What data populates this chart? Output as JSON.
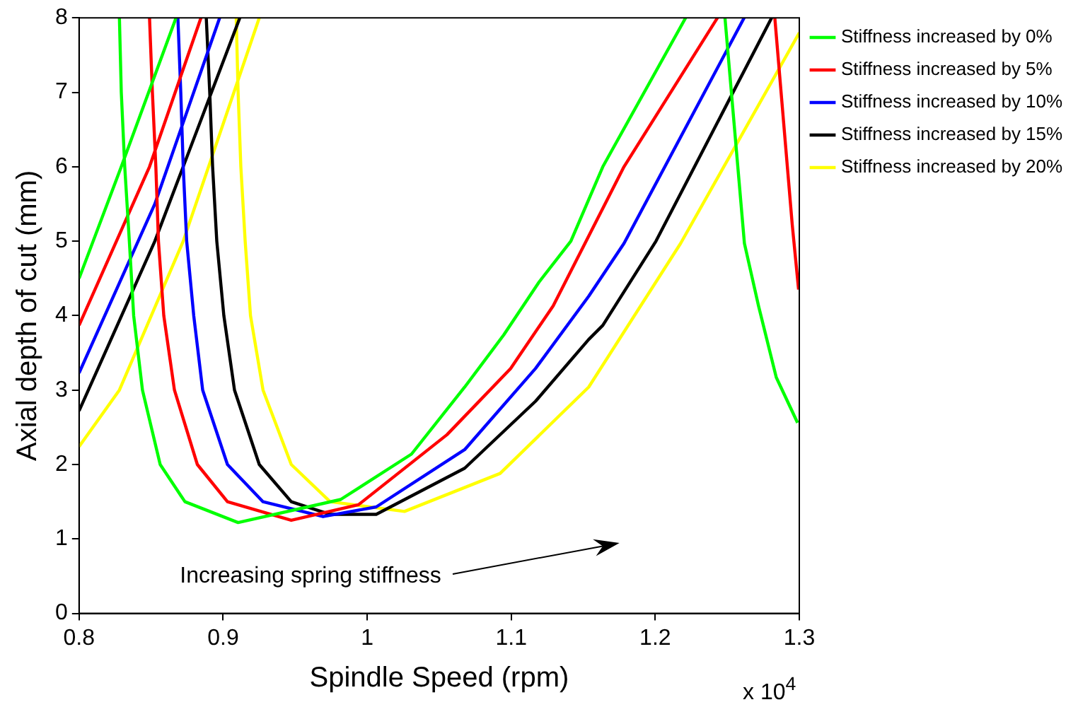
{
  "chart_data": {
    "type": "line",
    "xlabel": "Spindle Speed (rpm)",
    "ylabel": "Axial depth of cut (mm)",
    "annotations": [
      "Increasing spring stiffness",
      "x 10$^{4}$"
    ],
    "xlim": [
      0.8,
      1.3
    ],
    "xticks": [
      0.8,
      0.9,
      1,
      1.1,
      1.2,
      1.3
    ],
    "ylim": [
      0,
      8
    ],
    "yticks": [
      0,
      1,
      2,
      3,
      4,
      5,
      6,
      7,
      8
    ],
    "grid": false,
    "legend": "right",
    "marker": "none",
    "line_style": "solid",
    "series": [
      {
        "name": "Stiffness increased by 0%",
        "color": "#00ff00",
        "x": [
          0.8,
          0.8293,
          0.8673,
          null,
          0.828,
          0.8293,
          0.8317,
          0.8349,
          0.8379,
          0.844,
          0.8563,
          0.8735,
          0.9104,
          0.9816,
          1.0308,
          1.0677,
          1.0948,
          1.1193,
          1.1414,
          1.1636,
          1.2211,
          null,
          1.2484,
          1.2619,
          1.2717,
          1.284,
          1.2988
        ],
        "values": [
          4.5,
          6.0,
          8,
          null,
          8,
          7,
          6,
          5,
          4,
          3,
          2,
          1.5,
          1.22,
          1.53,
          2.14,
          3.04,
          3.74,
          4.45,
          5.0,
          6.0,
          8,
          null,
          8,
          4.97,
          4.13,
          3.17,
          2.56
        ]
      },
      {
        "name": "Stiffness increased by 5%",
        "color": "#ff0000",
        "x": [
          0.8,
          0.8489,
          0.8846,
          null,
          0.8489,
          0.8509,
          0.8533,
          0.8551,
          0.8588,
          0.8662,
          0.8821,
          0.903,
          0.9473,
          0.994,
          1.0554,
          1.0996,
          1.1291,
          1.1783,
          1.2432,
          null,
          1.283,
          1.2951,
          1.2995
        ],
        "values": [
          3.87,
          6.0,
          8,
          null,
          8,
          7,
          6,
          5,
          4,
          3,
          2,
          1.5,
          1.25,
          1.46,
          2.4,
          3.29,
          4.13,
          6.0,
          8,
          null,
          8,
          5.22,
          4.35
        ]
      },
      {
        "name": "Stiffness increased by 10%",
        "color": "#0000ff",
        "x": [
          0.8,
          0.8526,
          0.8976,
          null,
          0.8686,
          0.8706,
          0.8723,
          0.8747,
          0.8796,
          0.8858,
          0.903,
          0.9277,
          0.9694,
          1.0063,
          1.0677,
          1.1169,
          1.1538,
          1.1783,
          1.2617
        ],
        "values": [
          3.23,
          5.5,
          8,
          null,
          8,
          7,
          6,
          5,
          4,
          3,
          2,
          1.5,
          1.3,
          1.43,
          2.2,
          3.29,
          4.26,
          4.97,
          8
        ]
      },
      {
        "name": "Stiffness increased by 15%",
        "color": "#000000",
        "x": [
          0.8,
          0.8526,
          0.9116,
          null,
          0.8883,
          0.8907,
          0.8927,
          0.8956,
          0.9005,
          0.9079,
          0.9251,
          0.9473,
          0.9743,
          1.0063,
          1.0677,
          1.1169,
          1.1538,
          1.1636,
          1.2005,
          1.2808
        ],
        "values": [
          2.72,
          5.0,
          8,
          null,
          8,
          7,
          6,
          5,
          4,
          3,
          2,
          1.5,
          1.33,
          1.33,
          1.95,
          2.85,
          3.68,
          3.87,
          5.0,
          8
        ]
      },
      {
        "name": "Stiffness increased by 20%",
        "color": "#ffff00",
        "x": [
          0.8,
          0.828,
          0.8723,
          0.9251,
          null,
          0.9091,
          0.9104,
          0.9123,
          0.9153,
          0.919,
          0.9277,
          0.9473,
          0.9743,
          1.0259,
          1.0923,
          1.1538,
          1.2176,
          1.3
        ],
        "values": [
          2.24,
          3.0,
          5.0,
          8,
          null,
          8,
          7,
          6,
          5,
          4,
          3,
          2,
          1.5,
          1.37,
          1.88,
          3.04,
          4.97,
          7.8
        ]
      }
    ]
  }
}
